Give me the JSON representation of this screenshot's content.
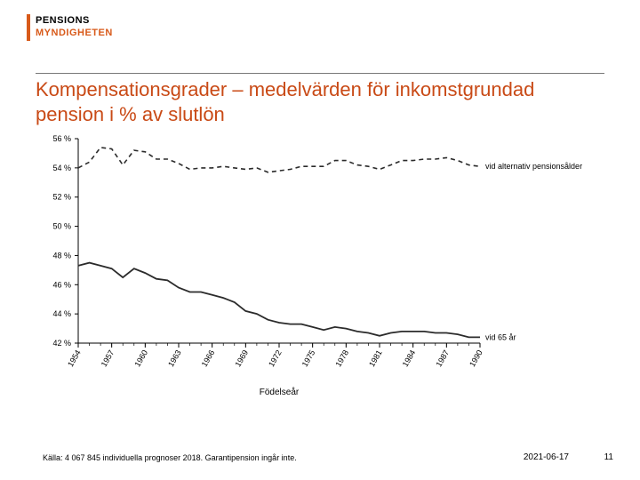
{
  "brand": {
    "line1": "PENSIONS",
    "line2": "MYNDIGHETEN",
    "bar_color": "#d85a1a"
  },
  "title": "Kompensationsgrader – medelvärden för inkomstgrundad pension i % av slutlön",
  "footer": {
    "source": "Källa: 4 067 845 individuella prognoser 2018. Garantipension ingår inte.",
    "date": "2021-06-17",
    "page": "11"
  },
  "chart": {
    "type": "line",
    "xlabel": "Födelseår",
    "ylim": [
      42,
      56
    ],
    "ytick_step": 2,
    "ytick_suffix": " %",
    "xticks": [
      1954,
      1957,
      1960,
      1963,
      1966,
      1969,
      1972,
      1975,
      1978,
      1981,
      1984,
      1987,
      1990
    ],
    "x_range": [
      1954,
      1990
    ],
    "label_fontsize": 10,
    "tick_fontsize": 9,
    "background_color": "#ffffff",
    "series": [
      {
        "name": "vid alternativ pensionsålder",
        "label": "vid alternativ pensionsålder",
        "style": "dashed",
        "color": "#2b2b2b",
        "line_width": 1.6,
        "points": [
          [
            1954,
            54.0
          ],
          [
            1955,
            54.4
          ],
          [
            1956,
            55.4
          ],
          [
            1957,
            55.3
          ],
          [
            1958,
            54.2
          ],
          [
            1959,
            55.2
          ],
          [
            1960,
            55.1
          ],
          [
            1961,
            54.6
          ],
          [
            1962,
            54.6
          ],
          [
            1963,
            54.3
          ],
          [
            1964,
            53.9
          ],
          [
            1965,
            54.0
          ],
          [
            1966,
            54.0
          ],
          [
            1967,
            54.1
          ],
          [
            1968,
            54.0
          ],
          [
            1969,
            53.9
          ],
          [
            1970,
            54.0
          ],
          [
            1971,
            53.7
          ],
          [
            1972,
            53.8
          ],
          [
            1973,
            53.9
          ],
          [
            1974,
            54.1
          ],
          [
            1975,
            54.1
          ],
          [
            1976,
            54.1
          ],
          [
            1977,
            54.5
          ],
          [
            1978,
            54.5
          ],
          [
            1979,
            54.2
          ],
          [
            1980,
            54.1
          ],
          [
            1981,
            53.9
          ],
          [
            1982,
            54.2
          ],
          [
            1983,
            54.5
          ],
          [
            1984,
            54.5
          ],
          [
            1985,
            54.6
          ],
          [
            1986,
            54.6
          ],
          [
            1987,
            54.7
          ],
          [
            1988,
            54.5
          ],
          [
            1989,
            54.2
          ],
          [
            1990,
            54.1
          ]
        ]
      },
      {
        "name": "vid 65 år",
        "label": "vid 65 år",
        "style": "solid",
        "color": "#2b2b2b",
        "line_width": 1.8,
        "points": [
          [
            1954,
            47.3
          ],
          [
            1955,
            47.5
          ],
          [
            1956,
            47.3
          ],
          [
            1957,
            47.1
          ],
          [
            1958,
            46.5
          ],
          [
            1959,
            47.1
          ],
          [
            1960,
            46.8
          ],
          [
            1961,
            46.4
          ],
          [
            1962,
            46.3
          ],
          [
            1963,
            45.8
          ],
          [
            1964,
            45.5
          ],
          [
            1965,
            45.5
          ],
          [
            1966,
            45.3
          ],
          [
            1967,
            45.1
          ],
          [
            1968,
            44.8
          ],
          [
            1969,
            44.2
          ],
          [
            1970,
            44.0
          ],
          [
            1971,
            43.6
          ],
          [
            1972,
            43.4
          ],
          [
            1973,
            43.3
          ],
          [
            1974,
            43.3
          ],
          [
            1975,
            43.1
          ],
          [
            1976,
            42.9
          ],
          [
            1977,
            43.1
          ],
          [
            1978,
            43.0
          ],
          [
            1979,
            42.8
          ],
          [
            1980,
            42.7
          ],
          [
            1981,
            42.5
          ],
          [
            1982,
            42.7
          ],
          [
            1983,
            42.8
          ],
          [
            1984,
            42.8
          ],
          [
            1985,
            42.8
          ],
          [
            1986,
            42.7
          ],
          [
            1987,
            42.7
          ],
          [
            1988,
            42.6
          ],
          [
            1989,
            42.4
          ],
          [
            1990,
            42.4
          ]
        ]
      }
    ]
  }
}
